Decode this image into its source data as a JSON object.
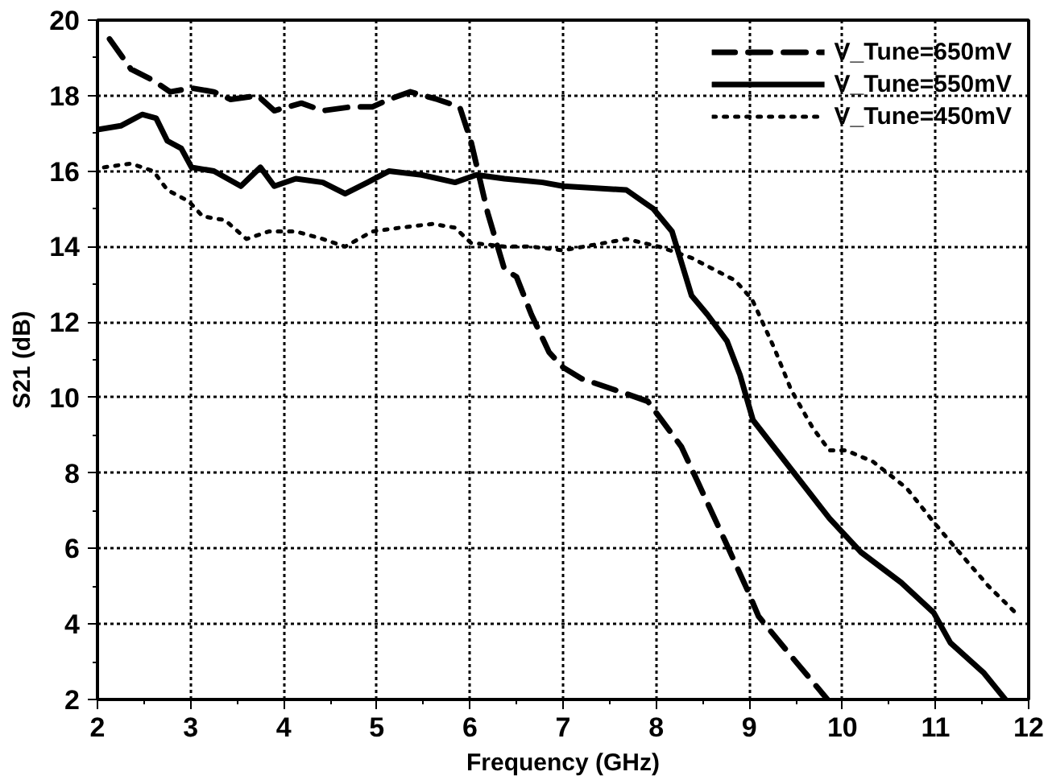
{
  "chart_data": {
    "type": "line",
    "xlabel": "Frequency (GHz)",
    "ylabel": "S21 (dB)",
    "xlim": [
      2,
      12
    ],
    "xticks": [
      2,
      3,
      4,
      5,
      6,
      7,
      8,
      9,
      10,
      11,
      12
    ],
    "ylim": [
      2,
      20
    ],
    "yticks": [
      2,
      4,
      6,
      8,
      10,
      12,
      14,
      16,
      18,
      20
    ],
    "grid": true,
    "legend": "top right",
    "series": [
      {
        "name": "V_Tune=650mV",
        "color": "#000000",
        "line_style": "dashed",
        "x": [
          2.13,
          2.36,
          2.6,
          2.78,
          3.01,
          3.25,
          3.43,
          3.72,
          3.9,
          4.19,
          4.42,
          4.72,
          4.95,
          5.13,
          5.36,
          5.65,
          5.89,
          6.01,
          6.19,
          6.37,
          6.5,
          6.66,
          6.85,
          7.0,
          7.2,
          7.68,
          7.91,
          8.27,
          8.44,
          8.74,
          8.98,
          9.1,
          9.5,
          9.84
        ],
        "values": [
          19.5,
          18.7,
          18.4,
          18.1,
          18.2,
          18.1,
          17.9,
          18.0,
          17.6,
          17.8,
          17.6,
          17.7,
          17.7,
          17.9,
          18.1,
          17.9,
          17.7,
          16.8,
          14.9,
          13.4,
          13.2,
          12.2,
          11.2,
          10.8,
          10.5,
          10.1,
          9.9,
          8.7,
          7.8,
          6.2,
          4.9,
          4.2,
          3.0,
          2.0
        ]
      },
      {
        "name": "V_Tune=550mV",
        "color": "#000000",
        "line_style": "solid",
        "x": [
          2.0,
          2.25,
          2.48,
          2.63,
          2.75,
          2.9,
          3.01,
          3.25,
          3.54,
          3.75,
          3.9,
          4.13,
          4.42,
          4.66,
          4.9,
          5.13,
          5.48,
          5.84,
          6.07,
          6.37,
          6.78,
          7.0,
          7.68,
          7.97,
          8.17,
          8.38,
          8.55,
          8.76,
          8.9,
          9.04,
          9.45,
          9.86,
          10.2,
          10.63,
          10.98,
          11.16,
          11.52,
          11.75
        ],
        "values": [
          17.1,
          17.2,
          17.5,
          17.4,
          16.8,
          16.6,
          16.1,
          16.0,
          15.6,
          16.1,
          15.6,
          15.8,
          15.7,
          15.4,
          15.7,
          16.0,
          15.9,
          15.7,
          15.9,
          15.8,
          15.7,
          15.6,
          15.5,
          15.0,
          14.4,
          12.7,
          12.2,
          11.5,
          10.6,
          9.4,
          8.1,
          6.8,
          5.9,
          5.1,
          4.3,
          3.5,
          2.7,
          2.0
        ]
      },
      {
        "name": "V_Tune=450mV",
        "color": "#000000",
        "line_style": "dotted",
        "x": [
          2.07,
          2.36,
          2.6,
          2.75,
          2.98,
          3.13,
          3.37,
          3.6,
          3.84,
          4.13,
          4.42,
          4.66,
          4.95,
          5.25,
          5.6,
          5.84,
          6.01,
          6.37,
          6.66,
          7.0,
          7.68,
          8.03,
          8.38,
          8.85,
          9.03,
          9.27,
          9.45,
          9.68,
          9.86,
          10.04,
          10.33,
          10.69,
          10.98,
          11.22,
          11.57,
          11.9
        ],
        "values": [
          16.1,
          16.2,
          16.0,
          15.5,
          15.2,
          14.8,
          14.7,
          14.2,
          14.4,
          14.4,
          14.2,
          14.0,
          14.4,
          14.5,
          14.6,
          14.5,
          14.1,
          14.0,
          14.0,
          13.9,
          14.2,
          14.0,
          13.7,
          13.1,
          12.6,
          11.3,
          10.2,
          9.2,
          8.6,
          8.6,
          8.3,
          7.6,
          6.7,
          6.0,
          5.0,
          4.2
        ]
      }
    ]
  }
}
